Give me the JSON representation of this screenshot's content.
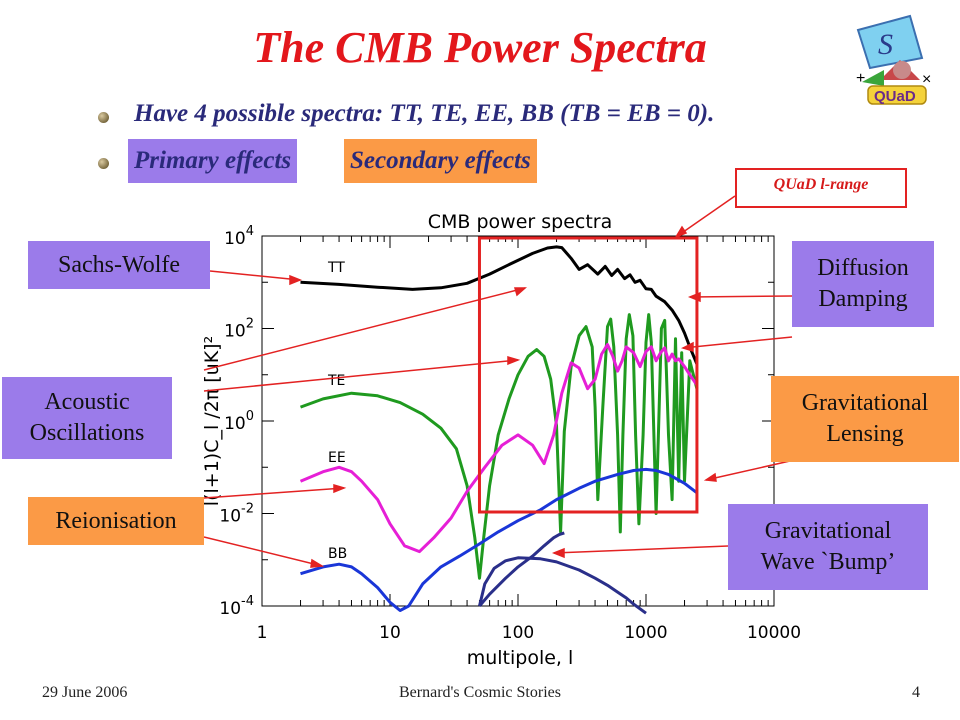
{
  "slide": {
    "title": "The CMB Power Spectra",
    "bullet1": "Have 4 possible spectra: TT, TE, EE, BB (TB = EB = 0).",
    "primary_label": "Primary effects",
    "secondary_label": "Secondary effects",
    "footer_date": "29 June 2006",
    "footer_center": "Bernard's Cosmic Stories",
    "page_number": "4",
    "logo_text": "QUaD",
    "logo_s": "S",
    "logo_plus": "+",
    "logo_times": "×"
  },
  "annotations": {
    "quad_range": "QUaD l-range",
    "sachs_wolfe": "Sachs-Wolfe",
    "acoustic_1": "Acoustic",
    "acoustic_2": "Oscillations",
    "reionisation": "Reionisation",
    "diffusion_1": "Diffusion",
    "diffusion_2": "Damping",
    "grav_lens_1": "Gravitational",
    "grav_lens_2": "Lensing",
    "grav_wave_1": "Gravitational",
    "grav_wave_2": "Wave `Bump’"
  },
  "colors": {
    "title": "#e3171c",
    "violet": "#9b7bea",
    "orange": "#fb9a46",
    "TT": "#000000",
    "TE": "#1f9a1f",
    "EE": "#e61fd6",
    "BB": "#1a36d8",
    "bump": "#2a2f8a",
    "range_box": "#e32222"
  },
  "chart_data": {
    "type": "line",
    "title": "CMB power spectra",
    "xlabel": "multipole, l",
    "ylabel": "l(l+1)C_l /2π [uK]²",
    "xscale": "log",
    "yscale": "log",
    "xlim": [
      1,
      10000
    ],
    "ylim": [
      0.0001,
      10000
    ],
    "x_ticks": [
      "1",
      "10",
      "100",
      "1000",
      "10000"
    ],
    "y_ticks": [
      "10^4",
      "10^2",
      "10^0",
      "10^-2",
      "10^-4"
    ],
    "y_tick_values": [
      10000,
      100,
      1,
      0.01,
      0.0001
    ],
    "x_tick_values": [
      1,
      10,
      100,
      1000,
      10000
    ],
    "grid": false,
    "quad_range": [
      50,
      2500
    ],
    "series": [
      {
        "name": "TT",
        "color": "#000000",
        "x": [
          2,
          4,
          8,
          15,
          25,
          40,
          60,
          90,
          130,
          170,
          200,
          220,
          260,
          300,
          350,
          420,
          480,
          540,
          600,
          680,
          750,
          820,
          900,
          1000,
          1100,
          1200,
          1400,
          1600,
          1800,
          2000,
          2200,
          2500
        ],
        "y": [
          1000,
          900,
          780,
          700,
          760,
          950,
          1500,
          2600,
          4200,
          5500,
          5800,
          5600,
          3300,
          1900,
          2400,
          1500,
          2200,
          1400,
          1900,
          1200,
          1450,
          1000,
          1100,
          720,
          700,
          500,
          380,
          250,
          150,
          80,
          40,
          17
        ]
      },
      {
        "name": "TE",
        "color": "#1f9a1f",
        "x": [
          2,
          3,
          5,
          8,
          12,
          18,
          25,
          33,
          40,
          46,
          50,
          54,
          60,
          70,
          85,
          100,
          120,
          140,
          160,
          180,
          200,
          215,
          230,
          260,
          300,
          340,
          380,
          400,
          420,
          460,
          500,
          530,
          560,
          600,
          630,
          660,
          700,
          740,
          790,
          830,
          880,
          950,
          1000,
          1050,
          1100,
          1200,
          1250,
          1320,
          1400,
          1500,
          1600,
          1700,
          1800,
          1900,
          2000,
          2200,
          2500
        ],
        "y": [
          2,
          3,
          4,
          3.5,
          2.5,
          1.4,
          0.7,
          0.25,
          0.04,
          0.003,
          0.0004,
          0.003,
          0.04,
          0.5,
          3,
          10,
          25,
          35,
          25,
          8,
          0.8,
          0.004,
          0.6,
          15,
          70,
          110,
          40,
          2,
          0.02,
          2,
          110,
          160,
          40,
          0.5,
          0.004,
          0.5,
          60,
          200,
          70,
          0.5,
          0.006,
          0.5,
          50,
          200,
          50,
          0.01,
          0.5,
          100,
          150,
          0.5,
          0.02,
          60,
          0.05,
          30,
          0.05,
          20,
          5
        ]
      },
      {
        "name": "EE",
        "color": "#e61fd6",
        "x": [
          2,
          3,
          4,
          5,
          6,
          8,
          10,
          13,
          17,
          22,
          30,
          40,
          55,
          75,
          100,
          130,
          160,
          190,
          220,
          260,
          300,
          350,
          400,
          450,
          500,
          550,
          600,
          650,
          700,
          800,
          900,
          1000,
          1100,
          1200,
          1300,
          1400,
          1500,
          1600,
          1700,
          1800,
          2000,
          2200,
          2500
        ],
        "y": [
          0.05,
          0.08,
          0.1,
          0.08,
          0.05,
          0.02,
          0.006,
          0.002,
          0.0015,
          0.003,
          0.008,
          0.03,
          0.1,
          0.3,
          0.5,
          0.3,
          0.12,
          0.5,
          4,
          18,
          14,
          5,
          8,
          28,
          45,
          25,
          12,
          20,
          40,
          30,
          15,
          32,
          40,
          20,
          30,
          38,
          20,
          28,
          20,
          22,
          15,
          10,
          6
        ]
      },
      {
        "name": "BB",
        "color": "#1a36d8",
        "x": [
          2,
          3,
          4,
          5,
          6,
          8,
          10,
          12,
          14,
          18,
          25,
          35,
          50,
          70,
          100,
          150,
          200,
          300,
          400,
          600,
          800,
          1000,
          1200,
          1500,
          2000,
          2500
        ],
        "y": [
          0.0005,
          0.0007,
          0.0008,
          0.0007,
          0.0005,
          0.00025,
          0.00012,
          8e-05,
          0.0001,
          0.0003,
          0.0007,
          0.0012,
          0.0022,
          0.004,
          0.007,
          0.012,
          0.02,
          0.035,
          0.05,
          0.07,
          0.085,
          0.09,
          0.085,
          0.07,
          0.045,
          0.028
        ]
      },
      {
        "name": "GW bump",
        "color": "#2a2f8a",
        "x": [
          50,
          55,
          65,
          80,
          100,
          150,
          200,
          300,
          400,
          500,
          600,
          700,
          800,
          1000
        ],
        "y": [
          0.0001,
          0.0003,
          0.00065,
          0.00095,
          0.0011,
          0.00105,
          0.0009,
          0.0006,
          0.0004,
          0.00028,
          0.0002,
          0.00015,
          0.00011,
          7e-05
        ]
      },
      {
        "name": "GW bump 2",
        "color": "#2a2f8a",
        "x": [
          50,
          60,
          80,
          100,
          130,
          160,
          190,
          210,
          230
        ],
        "y": [
          0.0001,
          0.00018,
          0.0004,
          0.0007,
          0.0012,
          0.002,
          0.003,
          0.0035,
          0.0038
        ]
      }
    ]
  }
}
